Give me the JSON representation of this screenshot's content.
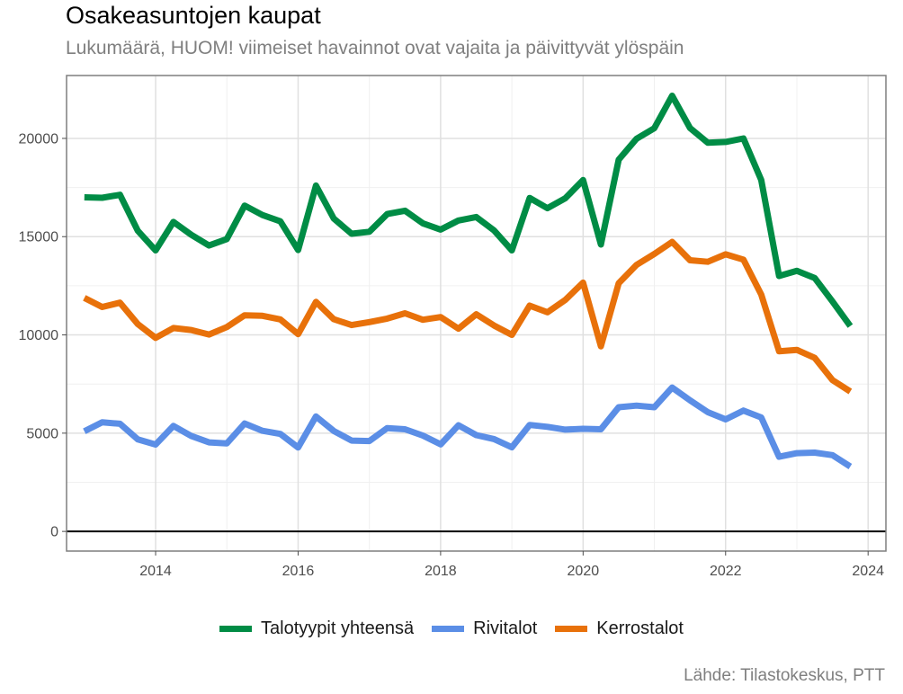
{
  "title": "Osakeasuntojen kaupat",
  "subtitle": "Lukumäärä, HUOM! viimeiset havainnot ovat vajaita ja päivittyvät ylöspäin",
  "source": "Lähde: Tilastokeskus, PTT",
  "chart_data": {
    "type": "line",
    "title": "Osakeasuntojen kaupat",
    "subtitle": "Lukumäärä, HUOM! viimeiset havainnot ovat vajaita ja päivittyvät ylöspäin",
    "xlabel": "",
    "ylabel": "",
    "xlim": [
      2012.75,
      2024.25
    ],
    "ylim": [
      -1000,
      23200
    ],
    "x_ticks": [
      2014,
      2016,
      2018,
      2020,
      2022,
      2024
    ],
    "y_ticks": [
      0,
      5000,
      10000,
      15000,
      20000
    ],
    "grid": true,
    "legend_position": "bottom",
    "x": [
      2013.0,
      2013.25,
      2013.5,
      2013.75,
      2014.0,
      2014.25,
      2014.5,
      2014.75,
      2015.0,
      2015.25,
      2015.5,
      2015.75,
      2016.0,
      2016.25,
      2016.5,
      2016.75,
      2017.0,
      2017.25,
      2017.5,
      2017.75,
      2018.0,
      2018.25,
      2018.5,
      2018.75,
      2019.0,
      2019.25,
      2019.5,
      2019.75,
      2020.0,
      2020.25,
      2020.5,
      2020.75,
      2021.0,
      2021.25,
      2021.5,
      2021.75,
      2022.0,
      2022.25,
      2022.5,
      2022.75,
      2023.0,
      2023.25,
      2023.5,
      2023.75
    ],
    "series": [
      {
        "name": "Talotyypit yhteensä",
        "color": "#008c45",
        "values": [
          17000,
          16980,
          17130,
          15300,
          14300,
          15750,
          15100,
          14550,
          14880,
          16580,
          16100,
          15780,
          14320,
          17600,
          15920,
          15150,
          15250,
          16150,
          16320,
          15680,
          15360,
          15820,
          16000,
          15320,
          14300,
          16970,
          16450,
          16950,
          17880,
          14600,
          18920,
          19980,
          20520,
          22170,
          20530,
          19780,
          19820,
          20000,
          17880,
          13000,
          13260,
          12900,
          11700,
          10450
        ]
      },
      {
        "name": "Rivitalot",
        "color": "#5b8ee6",
        "values": [
          5100,
          5550,
          5480,
          4680,
          4420,
          5370,
          4860,
          4530,
          4480,
          5490,
          5120,
          4960,
          4270,
          5850,
          5110,
          4620,
          4600,
          5260,
          5200,
          4880,
          4430,
          5400,
          4900,
          4700,
          4280,
          5420,
          5320,
          5180,
          5220,
          5200,
          6320,
          6400,
          6320,
          7320,
          6670,
          6070,
          5700,
          6150,
          5800,
          3800,
          3980,
          4010,
          3880,
          3300
        ]
      },
      {
        "name": "Kerrostalot",
        "color": "#e8710a",
        "values": [
          11880,
          11420,
          11640,
          10550,
          9850,
          10350,
          10250,
          10020,
          10400,
          11000,
          10970,
          10790,
          10040,
          11680,
          10800,
          10500,
          10650,
          10830,
          11100,
          10770,
          10910,
          10320,
          11050,
          10480,
          10000,
          11490,
          11150,
          11780,
          12660,
          9420,
          12630,
          13560,
          14120,
          14730,
          13800,
          13720,
          14100,
          13830,
          12050,
          9170,
          9240,
          8830,
          7700,
          7120
        ]
      }
    ]
  }
}
